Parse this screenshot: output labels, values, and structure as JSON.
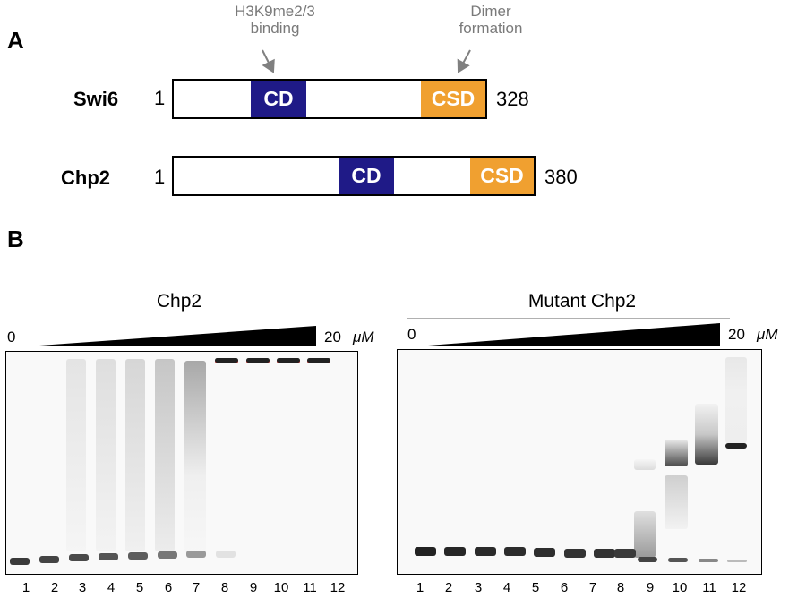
{
  "panel_a": {
    "label": "A",
    "annotations": {
      "cd_function": "H3K9me2/3\nbinding",
      "csd_function": "Dimer\nformation"
    },
    "colors": {
      "cd": "#1f1a87",
      "csd": "#f0a030",
      "arrow": "#808080"
    },
    "proteins": [
      {
        "name": "Swi6",
        "start": "1",
        "end": "328",
        "domains": [
          "CD",
          "CSD"
        ]
      },
      {
        "name": "Chp2",
        "start": "1",
        "end": "380",
        "domains": [
          "CD",
          "CSD"
        ]
      }
    ]
  },
  "panel_b": {
    "label": "B",
    "gels": [
      {
        "title": "Chp2",
        "conc_min": "0",
        "conc_max": "20",
        "unit": "μM",
        "lanes": [
          "1",
          "2",
          "3",
          "4",
          "5",
          "6",
          "7",
          "8",
          "9",
          "10",
          "11",
          "12"
        ]
      },
      {
        "title": "Mutant Chp2",
        "conc_min": "0",
        "conc_max": "20",
        "unit": "μM",
        "lanes": [
          "1",
          "2",
          "3",
          "4",
          "5",
          "6",
          "7",
          "8",
          "9",
          "10",
          "11",
          "12"
        ]
      }
    ]
  }
}
